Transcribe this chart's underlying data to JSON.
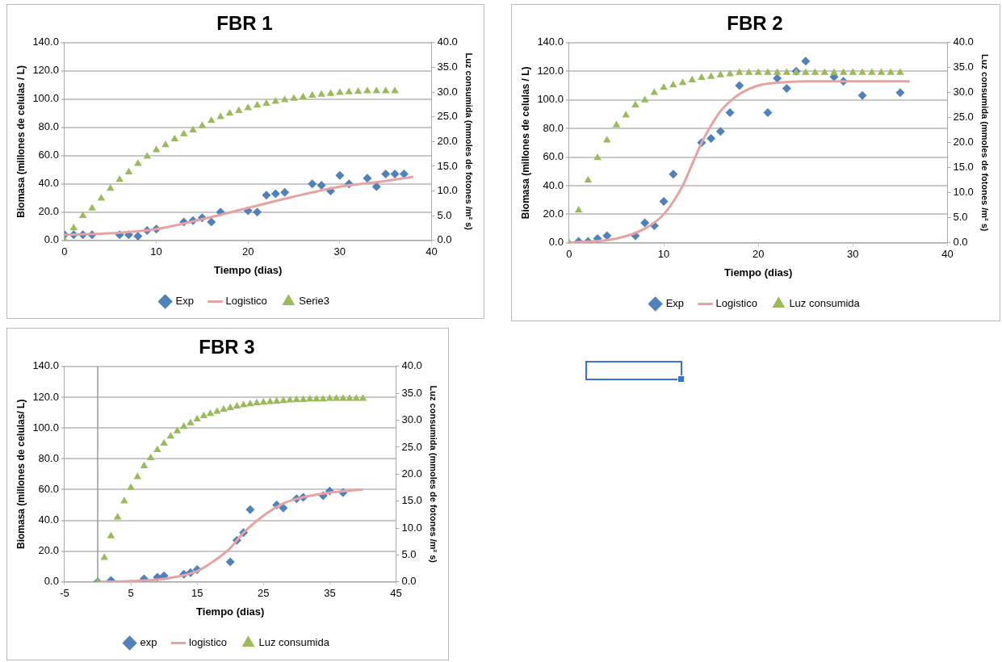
{
  "chart_data": [
    {
      "type": "scatter",
      "title": "FBR 1",
      "xlabel": "Tiempo (dias)",
      "ylabel": "Biomasa (millones de celulas / L)",
      "y2label": "Luz consumida (mmoles de fotones /m² s)",
      "xlim": [
        0,
        40
      ],
      "xticks": [
        0,
        10,
        20,
        30,
        40
      ],
      "ylim": [
        0,
        140
      ],
      "yticks": [
        {
          "value": 0,
          "label": "0.0"
        },
        {
          "value": 20,
          "label": "20.0"
        },
        {
          "value": 40,
          "label": "40.0"
        },
        {
          "value": 60,
          "label": "60.0"
        },
        {
          "value": 80,
          "label": "80.0"
        },
        {
          "value": 100,
          "label": "100.0"
        },
        {
          "value": 120,
          "label": "120.0"
        },
        {
          "value": 140,
          "label": "140.0"
        }
      ],
      "y2lim": [
        0,
        40
      ],
      "y2ticks": [
        {
          "value": 0,
          "label": "0.0"
        },
        {
          "value": 5,
          "label": "5.0"
        },
        {
          "value": 10,
          "label": "10.0"
        },
        {
          "value": 15,
          "label": "15.0"
        },
        {
          "value": 20,
          "label": "20.0"
        },
        {
          "value": 25,
          "label": "25.0"
        },
        {
          "value": 30,
          "label": "30.0"
        },
        {
          "value": 35,
          "label": "35.0"
        },
        {
          "value": 40,
          "label": "40.0"
        }
      ],
      "grid": "y",
      "legend": "bottom",
      "series": [
        {
          "name": "Exp",
          "marker": "diamond",
          "color": "#4f81bd",
          "x": [
            0,
            1,
            2,
            3,
            6,
            7,
            8,
            9,
            10,
            13,
            14,
            15,
            16,
            17,
            20,
            21,
            22,
            23,
            24,
            27,
            28,
            29,
            30,
            31,
            33,
            34,
            35,
            36,
            37
          ],
          "values": [
            4,
            4,
            4,
            4,
            4,
            4,
            3,
            7,
            8,
            13,
            14,
            16,
            13,
            20,
            21,
            20,
            32,
            33,
            34,
            40,
            39,
            35,
            46,
            40,
            44,
            38,
            47,
            47,
            47
          ]
        },
        {
          "name": "Logistico",
          "type": "line",
          "marker": "none",
          "line_style": "solid",
          "color": "#e6a3a1",
          "x": [
            0,
            5,
            10,
            15,
            20,
            25,
            30,
            35,
            38
          ],
          "values": [
            4,
            5,
            8,
            15,
            23,
            31,
            38,
            42,
            45
          ]
        },
        {
          "name": "Serie3",
          "marker": "triangle",
          "axis": "y2",
          "color": "#9bbb59",
          "x": [
            0,
            1,
            2,
            3,
            4,
            5,
            6,
            7,
            8,
            9,
            10,
            11,
            12,
            13,
            14,
            15,
            16,
            17,
            18,
            19,
            20,
            21,
            22,
            23,
            24,
            25,
            26,
            27,
            28,
            29,
            30,
            31,
            32,
            33,
            34,
            35,
            36
          ],
          "values": [
            0,
            2.5,
            5,
            6.5,
            8.5,
            10.5,
            12.3,
            13.8,
            15.5,
            17,
            18.3,
            19.3,
            20.5,
            21.5,
            22.3,
            23.2,
            24.2,
            25,
            25.7,
            26.2,
            26.8,
            27.3,
            27.7,
            28.1,
            28.4,
            28.7,
            29,
            29.3,
            29.5,
            29.7,
            29.9,
            30,
            30.1,
            30.2,
            30.2,
            30.2,
            30.2
          ]
        }
      ]
    },
    {
      "type": "scatter",
      "title": "FBR 2",
      "xlabel": "Tiempo (dias)",
      "ylabel": "Biomasa (millones de celulas / L)",
      "y2label": "Luz consumida (mmoles de fotones /m² s)",
      "xlim": [
        0,
        40
      ],
      "xticks": [
        0,
        10,
        20,
        30,
        40
      ],
      "ylim": [
        0,
        140
      ],
      "yticks": [
        {
          "value": 0,
          "label": "0.0"
        },
        {
          "value": 20,
          "label": "20.0"
        },
        {
          "value": 40,
          "label": "40.0"
        },
        {
          "value": 60,
          "label": "60.0"
        },
        {
          "value": 80,
          "label": "80.0"
        },
        {
          "value": 100,
          "label": "100.0"
        },
        {
          "value": 120,
          "label": "120.0"
        },
        {
          "value": 140,
          "label": "140.0"
        }
      ],
      "y2lim": [
        0,
        40
      ],
      "y2ticks": [
        {
          "value": 0,
          "label": "0.0"
        },
        {
          "value": 5,
          "label": "5.0"
        },
        {
          "value": 10,
          "label": "10.0"
        },
        {
          "value": 15,
          "label": "15.0"
        },
        {
          "value": 20,
          "label": "20.0"
        },
        {
          "value": 25,
          "label": "25.0"
        },
        {
          "value": 30,
          "label": "30.0"
        },
        {
          "value": 35,
          "label": "35.0"
        },
        {
          "value": 40,
          "label": "40.0"
        }
      ],
      "grid": "y",
      "legend": "bottom",
      "series": [
        {
          "name": "Exp",
          "marker": "diamond",
          "color": "#4f81bd",
          "x": [
            1,
            2,
            3,
            4,
            7,
            8,
            9,
            10,
            11,
            14,
            15,
            16,
            17,
            18,
            21,
            22,
            23,
            24,
            25,
            28,
            29,
            31,
            35
          ],
          "values": [
            1,
            1,
            3,
            5,
            5,
            14,
            12,
            29,
            48,
            70,
            73,
            78,
            91,
            110,
            91,
            115,
            108,
            120,
            127,
            116,
            113,
            103,
            105
          ]
        },
        {
          "name": "Logistico",
          "type": "line",
          "marker": "none",
          "line_style": "solid",
          "color": "#e6a3a1",
          "x": [
            0,
            5,
            8,
            10,
            12,
            13,
            14,
            15,
            16,
            18,
            20,
            22,
            25,
            36
          ],
          "values": [
            0,
            3,
            10,
            20,
            40,
            55,
            70,
            82,
            92,
            104,
            110,
            112,
            113,
            113
          ]
        },
        {
          "name": "Luz consumida",
          "marker": "triangle",
          "axis": "y2",
          "color": "#9bbb59",
          "x": [
            0,
            1,
            2,
            3,
            4,
            5,
            6,
            7,
            8,
            9,
            10,
            11,
            12,
            13,
            14,
            15,
            16,
            17,
            18,
            19,
            20,
            21,
            22,
            23,
            24,
            25,
            26,
            27,
            28,
            29,
            30,
            31,
            32,
            33,
            34,
            35
          ],
          "values": [
            0,
            6.5,
            12.5,
            17,
            20.5,
            23.5,
            25.5,
            27.5,
            28.5,
            30,
            31,
            31.5,
            32,
            32.5,
            33,
            33.2,
            33.5,
            33.7,
            34,
            34,
            34,
            34,
            34,
            34,
            34,
            34,
            34,
            34,
            34,
            34,
            34,
            34,
            34,
            34,
            34,
            34
          ]
        }
      ]
    },
    {
      "type": "scatter",
      "title": "FBR 3",
      "xlabel": "Tiempo (dias)",
      "ylabel": "Biomasa (millones de celulas/ L)",
      "y2label": "Luz consumida (mmoles de fotones /m² s)",
      "xlim": [
        -5,
        45
      ],
      "xticks": [
        -5,
        5,
        15,
        25,
        35,
        45
      ],
      "ylim": [
        0,
        140
      ],
      "yticks": [
        {
          "value": 0,
          "label": "0.0"
        },
        {
          "value": 20,
          "label": "20.0"
        },
        {
          "value": 40,
          "label": "40.0"
        },
        {
          "value": 60,
          "label": "60.0"
        },
        {
          "value": 80,
          "label": "80.0"
        },
        {
          "value": 100,
          "label": "100.0"
        },
        {
          "value": 120,
          "label": "120.0"
        },
        {
          "value": 140,
          "label": "140.0"
        }
      ],
      "y2lim": [
        0,
        40
      ],
      "y2ticks": [
        {
          "value": 0,
          "label": "0.0"
        },
        {
          "value": 5,
          "label": "5.0"
        },
        {
          "value": 10,
          "label": "10.0"
        },
        {
          "value": 15,
          "label": "15.0"
        },
        {
          "value": 20,
          "label": "20.0"
        },
        {
          "value": 25,
          "label": "25.0"
        },
        {
          "value": 30,
          "label": "30.0"
        },
        {
          "value": 35,
          "label": "35.0"
        },
        {
          "value": 40,
          "label": "40.0"
        }
      ],
      "grid": "y",
      "legend": "bottom",
      "series": [
        {
          "name": "exp",
          "marker": "diamond",
          "color": "#4f81bd",
          "x": [
            0,
            2,
            7,
            9,
            10,
            13,
            14,
            15,
            20,
            21,
            22,
            23,
            27,
            28,
            30,
            31,
            34,
            35,
            37
          ],
          "values": [
            0,
            1,
            2,
            3,
            4,
            5,
            6,
            8,
            13,
            27,
            32,
            47,
            50,
            48,
            54,
            55,
            56,
            59,
            58
          ]
        },
        {
          "name": "logistico",
          "type": "line",
          "marker": "none",
          "line_style": "solid",
          "color": "#e6a3a1",
          "x": [
            0,
            5,
            10,
            15,
            18,
            20,
            22,
            25,
            28,
            31,
            35,
            40
          ],
          "values": [
            0,
            0.5,
            2,
            7,
            15,
            22,
            32,
            43,
            51,
            55,
            58,
            60
          ]
        },
        {
          "name": "Luz consumida",
          "marker": "triangle",
          "axis": "y2",
          "color": "#9bbb59",
          "x": [
            0,
            1,
            2,
            3,
            4,
            5,
            6,
            7,
            8,
            9,
            10,
            11,
            12,
            13,
            14,
            15,
            16,
            17,
            18,
            19,
            20,
            21,
            22,
            23,
            24,
            25,
            26,
            27,
            28,
            29,
            30,
            31,
            32,
            33,
            34,
            35,
            36,
            37,
            38,
            39,
            40
          ],
          "values": [
            0,
            4.5,
            8.5,
            12,
            15,
            17.5,
            19.5,
            21.5,
            23,
            24.5,
            25.7,
            27,
            28,
            28.8,
            29.5,
            30.2,
            30.8,
            31.2,
            31.6,
            32,
            32.3,
            32.6,
            32.8,
            33,
            33.2,
            33.3,
            33.4,
            33.5,
            33.6,
            33.7,
            33.8,
            33.8,
            33.9,
            33.9,
            33.9,
            34,
            34,
            34,
            34,
            34,
            34
          ]
        }
      ]
    }
  ]
}
